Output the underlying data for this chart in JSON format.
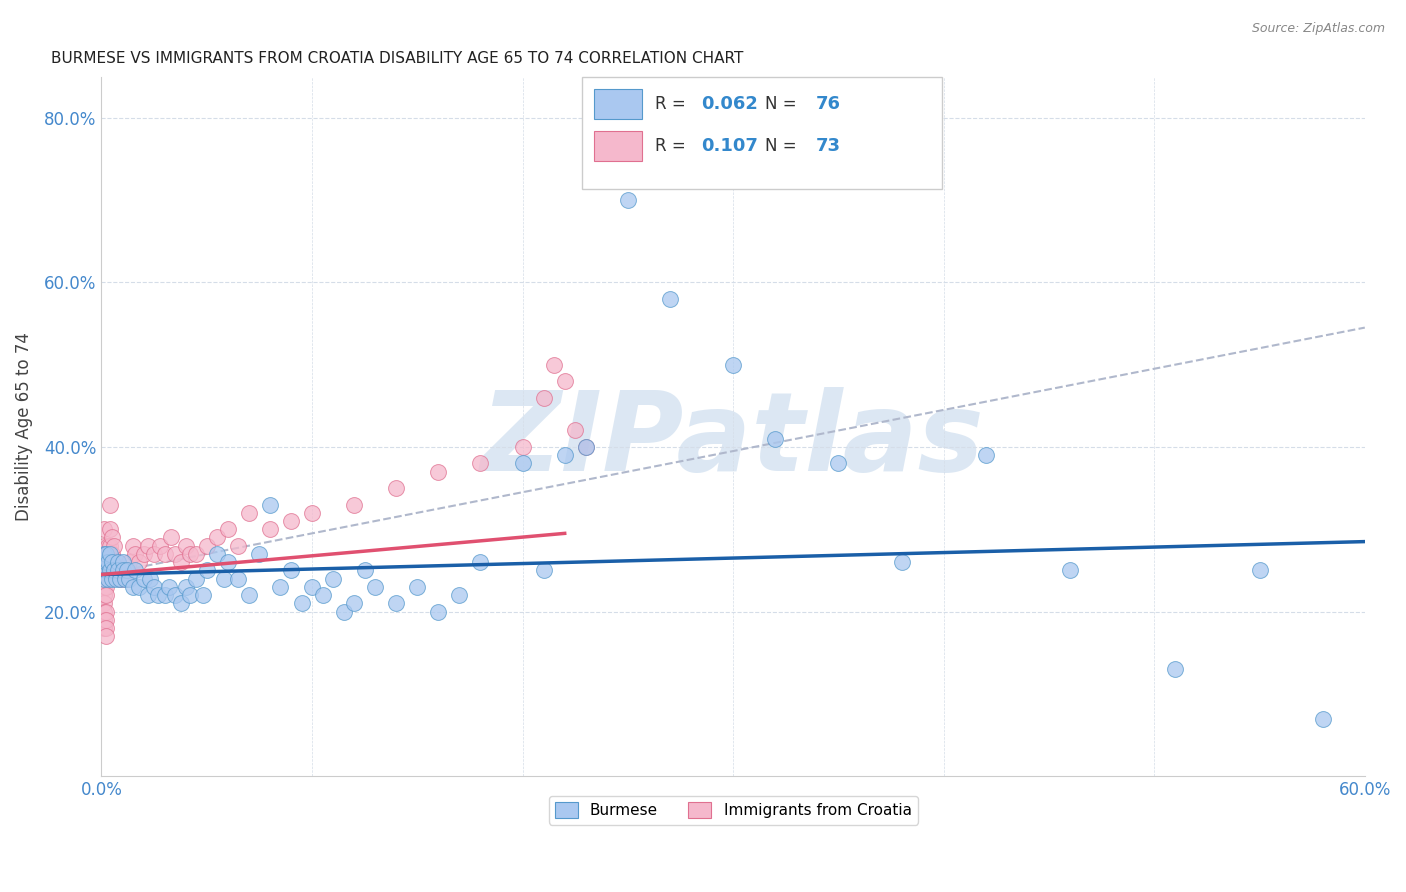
{
  "title": "BURMESE VS IMMIGRANTS FROM CROATIA DISABILITY AGE 65 TO 74 CORRELATION CHART",
  "source": "Source: ZipAtlas.com",
  "ylabel_label": "Disability Age 65 to 74",
  "x_min": 0.0,
  "x_max": 0.6,
  "y_min": 0.0,
  "y_max": 0.85,
  "x_ticks": [
    0.0,
    0.1,
    0.2,
    0.3,
    0.4,
    0.5,
    0.6
  ],
  "x_tick_labels": [
    "0.0%",
    "",
    "",
    "",
    "",
    "",
    "60.0%"
  ],
  "y_ticks": [
    0.2,
    0.4,
    0.6,
    0.8
  ],
  "y_tick_labels": [
    "20.0%",
    "40.0%",
    "60.0%",
    "80.0%"
  ],
  "burmese_color": "#aac8f0",
  "burmese_edge_color": "#5599cc",
  "croatia_color": "#f5b8cc",
  "croatia_edge_color": "#e07090",
  "burmese_line_color": "#1a5fa8",
  "croatia_line_color": "#e05070",
  "dashed_line_color": "#b0b8cc",
  "R_burmese": 0.062,
  "N_burmese": 76,
  "R_croatia": 0.107,
  "N_croatia": 73,
  "watermark": "ZIPatlas",
  "watermark_color": "#c5d8ec",
  "legend_label_burmese": "Burmese",
  "legend_label_croatia": "Immigrants from Croatia",
  "burmese_x": [
    0.001,
    0.001,
    0.001,
    0.002,
    0.002,
    0.002,
    0.003,
    0.003,
    0.004,
    0.004,
    0.005,
    0.005,
    0.006,
    0.007,
    0.008,
    0.008,
    0.009,
    0.01,
    0.01,
    0.011,
    0.012,
    0.013,
    0.015,
    0.016,
    0.018,
    0.02,
    0.022,
    0.023,
    0.025,
    0.027,
    0.03,
    0.032,
    0.035,
    0.038,
    0.04,
    0.042,
    0.045,
    0.048,
    0.05,
    0.055,
    0.058,
    0.06,
    0.065,
    0.07,
    0.075,
    0.08,
    0.085,
    0.09,
    0.095,
    0.1,
    0.105,
    0.11,
    0.115,
    0.12,
    0.125,
    0.13,
    0.14,
    0.15,
    0.16,
    0.17,
    0.18,
    0.2,
    0.21,
    0.22,
    0.23,
    0.25,
    0.27,
    0.3,
    0.32,
    0.35,
    0.38,
    0.42,
    0.46,
    0.51,
    0.55,
    0.58
  ],
  "burmese_y": [
    0.24,
    0.26,
    0.27,
    0.25,
    0.26,
    0.27,
    0.24,
    0.26,
    0.25,
    0.27,
    0.24,
    0.26,
    0.25,
    0.24,
    0.26,
    0.25,
    0.24,
    0.26,
    0.25,
    0.24,
    0.25,
    0.24,
    0.23,
    0.25,
    0.23,
    0.24,
    0.22,
    0.24,
    0.23,
    0.22,
    0.22,
    0.23,
    0.22,
    0.21,
    0.23,
    0.22,
    0.24,
    0.22,
    0.25,
    0.27,
    0.24,
    0.26,
    0.24,
    0.22,
    0.27,
    0.33,
    0.23,
    0.25,
    0.21,
    0.23,
    0.22,
    0.24,
    0.2,
    0.21,
    0.25,
    0.23,
    0.21,
    0.23,
    0.2,
    0.22,
    0.26,
    0.38,
    0.25,
    0.39,
    0.4,
    0.7,
    0.58,
    0.5,
    0.41,
    0.38,
    0.26,
    0.39,
    0.25,
    0.13,
    0.25,
    0.07
  ],
  "croatia_x": [
    0.001,
    0.001,
    0.001,
    0.001,
    0.001,
    0.001,
    0.001,
    0.001,
    0.001,
    0.001,
    0.001,
    0.001,
    0.001,
    0.002,
    0.002,
    0.002,
    0.002,
    0.002,
    0.002,
    0.002,
    0.002,
    0.002,
    0.002,
    0.003,
    0.003,
    0.003,
    0.003,
    0.004,
    0.004,
    0.004,
    0.004,
    0.005,
    0.005,
    0.006,
    0.007,
    0.008,
    0.009,
    0.01,
    0.011,
    0.012,
    0.013,
    0.015,
    0.016,
    0.018,
    0.02,
    0.022,
    0.025,
    0.028,
    0.03,
    0.033,
    0.035,
    0.038,
    0.04,
    0.042,
    0.045,
    0.05,
    0.055,
    0.06,
    0.065,
    0.07,
    0.08,
    0.09,
    0.1,
    0.12,
    0.14,
    0.16,
    0.18,
    0.2,
    0.21,
    0.215,
    0.22,
    0.225,
    0.23
  ],
  "croatia_y": [
    0.24,
    0.26,
    0.28,
    0.3,
    0.25,
    0.27,
    0.23,
    0.25,
    0.22,
    0.21,
    0.2,
    0.19,
    0.18,
    0.24,
    0.26,
    0.27,
    0.25,
    0.23,
    0.22,
    0.2,
    0.19,
    0.18,
    0.17,
    0.28,
    0.27,
    0.26,
    0.25,
    0.26,
    0.28,
    0.3,
    0.33,
    0.27,
    0.29,
    0.28,
    0.25,
    0.26,
    0.24,
    0.25,
    0.24,
    0.25,
    0.26,
    0.28,
    0.27,
    0.26,
    0.27,
    0.28,
    0.27,
    0.28,
    0.27,
    0.29,
    0.27,
    0.26,
    0.28,
    0.27,
    0.27,
    0.28,
    0.29,
    0.3,
    0.28,
    0.32,
    0.3,
    0.31,
    0.32,
    0.33,
    0.35,
    0.37,
    0.38,
    0.4,
    0.46,
    0.5,
    0.48,
    0.42,
    0.4
  ],
  "burmese_line_x": [
    0.0,
    0.6
  ],
  "burmese_line_y": [
    0.245,
    0.285
  ],
  "croatia_line_x": [
    0.0,
    0.22
  ],
  "croatia_line_y": [
    0.245,
    0.295
  ],
  "dashed_line_x": [
    0.0,
    0.6
  ],
  "dashed_line_y": [
    0.245,
    0.545
  ]
}
